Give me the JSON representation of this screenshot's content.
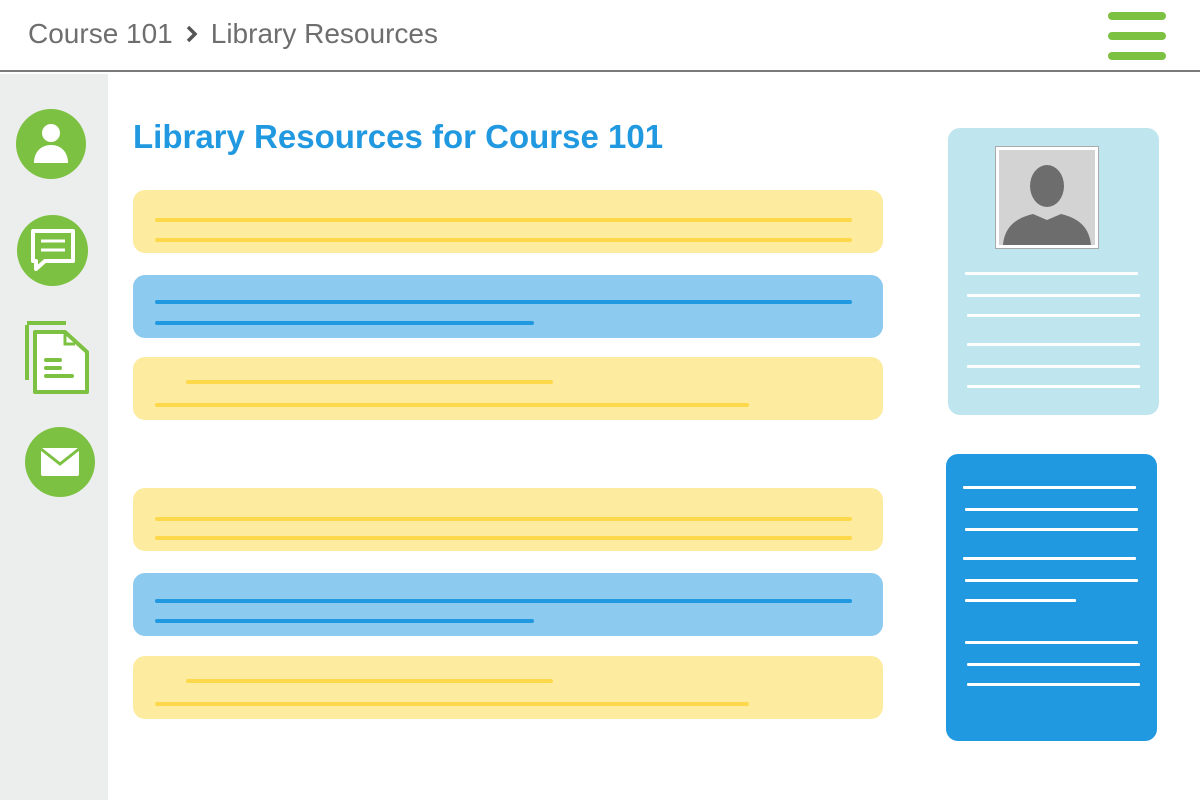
{
  "header": {
    "breadcrumb": [
      {
        "label": "Course 101"
      },
      {
        "label": "Library Resources"
      }
    ],
    "menu_icon": "hamburger-icon"
  },
  "sidebar": {
    "items": [
      {
        "icon": "user-icon"
      },
      {
        "icon": "chat-icon"
      },
      {
        "icon": "documents-icon"
      },
      {
        "icon": "mail-icon"
      }
    ]
  },
  "main": {
    "title": "Library Resources for Course 101"
  },
  "colors": {
    "accent_green": "#7cc142",
    "accent_blue": "#2199e0",
    "yellow_row": "#fdeba0",
    "blue_row": "#8ccaef",
    "profile_card": "#bfe5ee"
  }
}
